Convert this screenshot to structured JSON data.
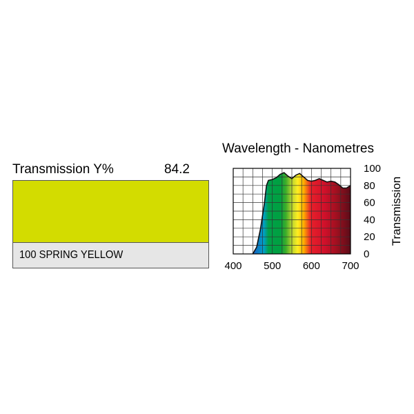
{
  "swatch": {
    "transmission_label": "Transmission Y%",
    "transmission_value": "84.2",
    "color": "#d3dc00",
    "name": "100 SPRING YELLOW"
  },
  "chart_data": {
    "type": "area",
    "title": "Wavelength - Nanometres",
    "ylabel": "Transmission",
    "xlim": [
      400,
      700
    ],
    "ylim": [
      0,
      100
    ],
    "x_ticks": [
      "400",
      "500",
      "600",
      "700"
    ],
    "y_ticks": [
      "0",
      "20",
      "40",
      "60",
      "80",
      "100"
    ],
    "grid": true,
    "series": [
      {
        "x": [
          450,
          460,
          470,
          480,
          485,
          490,
          500,
          510,
          520,
          530,
          540,
          550,
          560,
          570,
          580,
          590,
          600,
          610,
          620,
          630,
          640,
          650,
          660,
          670,
          680,
          690,
          700
        ],
        "values": [
          0,
          8,
          30,
          60,
          80,
          86,
          87,
          89,
          93,
          95,
          91,
          88,
          92,
          94,
          90,
          86,
          85,
          86,
          88,
          86,
          84,
          85,
          84,
          81,
          77,
          77,
          80
        ]
      }
    ]
  }
}
